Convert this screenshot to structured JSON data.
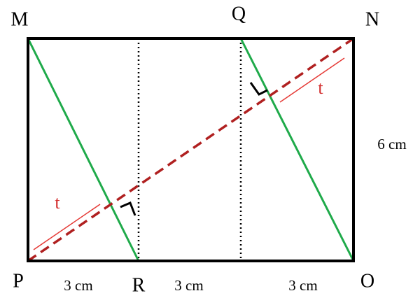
{
  "points": {
    "M": "M",
    "Q": "Q",
    "N": "N",
    "P": "P",
    "R": "R",
    "O": "O"
  },
  "lengths": {
    "side": "6 cm",
    "bottom": [
      "3 cm",
      "3 cm",
      "3 cm"
    ]
  },
  "distance_labels": [
    "t",
    "t"
  ]
}
